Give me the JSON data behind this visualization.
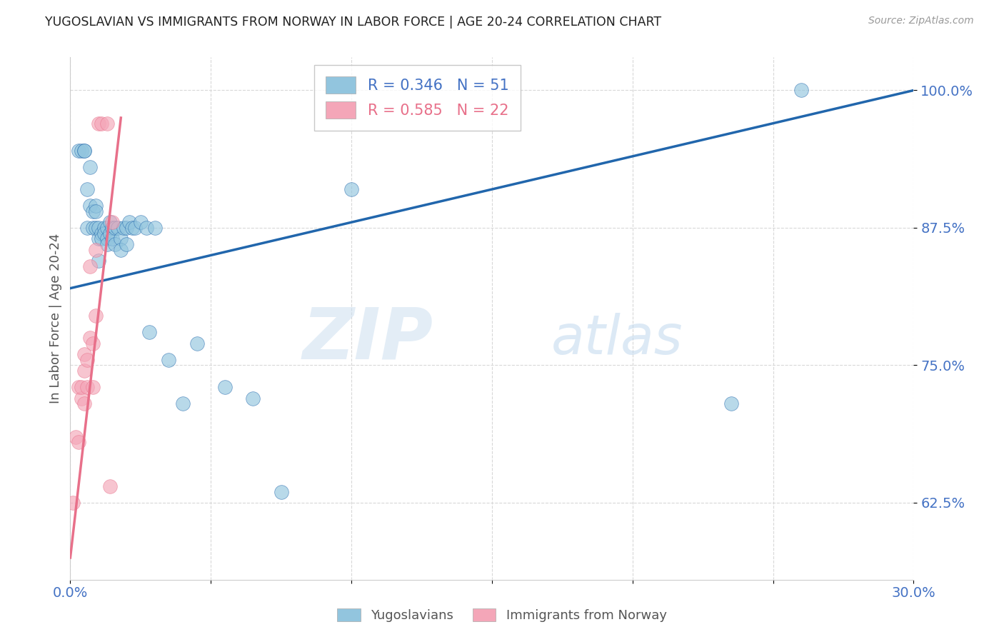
{
  "title": "YUGOSLAVIAN VS IMMIGRANTS FROM NORWAY IN LABOR FORCE | AGE 20-24 CORRELATION CHART",
  "source": "Source: ZipAtlas.com",
  "ylabel": "In Labor Force | Age 20-24",
  "xlim": [
    0.0,
    0.3
  ],
  "ylim": [
    0.555,
    1.03
  ],
  "xticks": [
    0.0,
    0.05,
    0.1,
    0.15,
    0.2,
    0.25,
    0.3
  ],
  "xticklabels": [
    "0.0%",
    "",
    "",
    "",
    "",
    "",
    "30.0%"
  ],
  "yticks": [
    0.625,
    0.75,
    0.875,
    1.0
  ],
  "yticklabels": [
    "62.5%",
    "75.0%",
    "87.5%",
    "100.0%"
  ],
  "legend_blue_r": "R = 0.346",
  "legend_blue_n": "N = 51",
  "legend_pink_r": "R = 0.585",
  "legend_pink_n": "N = 22",
  "watermark_zip": "ZIP",
  "watermark_atlas": "atlas",
  "blue_color": "#92c5de",
  "pink_color": "#f4a6b8",
  "blue_line_color": "#2166ac",
  "pink_line_color": "#e8708a",
  "axis_label_color": "#4472c4",
  "grid_color": "#d8d8d8",
  "blue_scatter_x": [
    0.003,
    0.004,
    0.005,
    0.005,
    0.006,
    0.006,
    0.007,
    0.007,
    0.008,
    0.008,
    0.009,
    0.009,
    0.009,
    0.01,
    0.01,
    0.01,
    0.011,
    0.011,
    0.012,
    0.012,
    0.013,
    0.013,
    0.013,
    0.014,
    0.014,
    0.015,
    0.015,
    0.016,
    0.016,
    0.017,
    0.018,
    0.018,
    0.019,
    0.02,
    0.02,
    0.021,
    0.022,
    0.023,
    0.025,
    0.027,
    0.028,
    0.03,
    0.035,
    0.04,
    0.045,
    0.055,
    0.065,
    0.075,
    0.1,
    0.235,
    0.26
  ],
  "blue_scatter_y": [
    0.945,
    0.945,
    0.945,
    0.945,
    0.91,
    0.875,
    0.93,
    0.895,
    0.89,
    0.875,
    0.895,
    0.875,
    0.89,
    0.875,
    0.865,
    0.845,
    0.87,
    0.865,
    0.875,
    0.87,
    0.875,
    0.865,
    0.86,
    0.88,
    0.87,
    0.875,
    0.865,
    0.875,
    0.86,
    0.875,
    0.865,
    0.855,
    0.875,
    0.86,
    0.875,
    0.88,
    0.875,
    0.875,
    0.88,
    0.875,
    0.78,
    0.875,
    0.755,
    0.715,
    0.77,
    0.73,
    0.72,
    0.635,
    0.91,
    0.715,
    1.0
  ],
  "pink_scatter_x": [
    0.001,
    0.002,
    0.003,
    0.003,
    0.004,
    0.004,
    0.005,
    0.005,
    0.005,
    0.006,
    0.006,
    0.007,
    0.007,
    0.008,
    0.008,
    0.009,
    0.009,
    0.01,
    0.011,
    0.013,
    0.014,
    0.015
  ],
  "pink_scatter_y": [
    0.625,
    0.685,
    0.68,
    0.73,
    0.72,
    0.73,
    0.715,
    0.745,
    0.76,
    0.73,
    0.755,
    0.775,
    0.84,
    0.73,
    0.77,
    0.855,
    0.795,
    0.97,
    0.97,
    0.97,
    0.64,
    0.88
  ],
  "blue_line_x0": 0.0,
  "blue_line_x1": 0.3,
  "blue_line_y0": 0.82,
  "blue_line_y1": 1.0,
  "pink_line_x0": 0.0,
  "pink_line_x1": 0.018,
  "pink_line_y0": 0.575,
  "pink_line_y1": 0.975
}
